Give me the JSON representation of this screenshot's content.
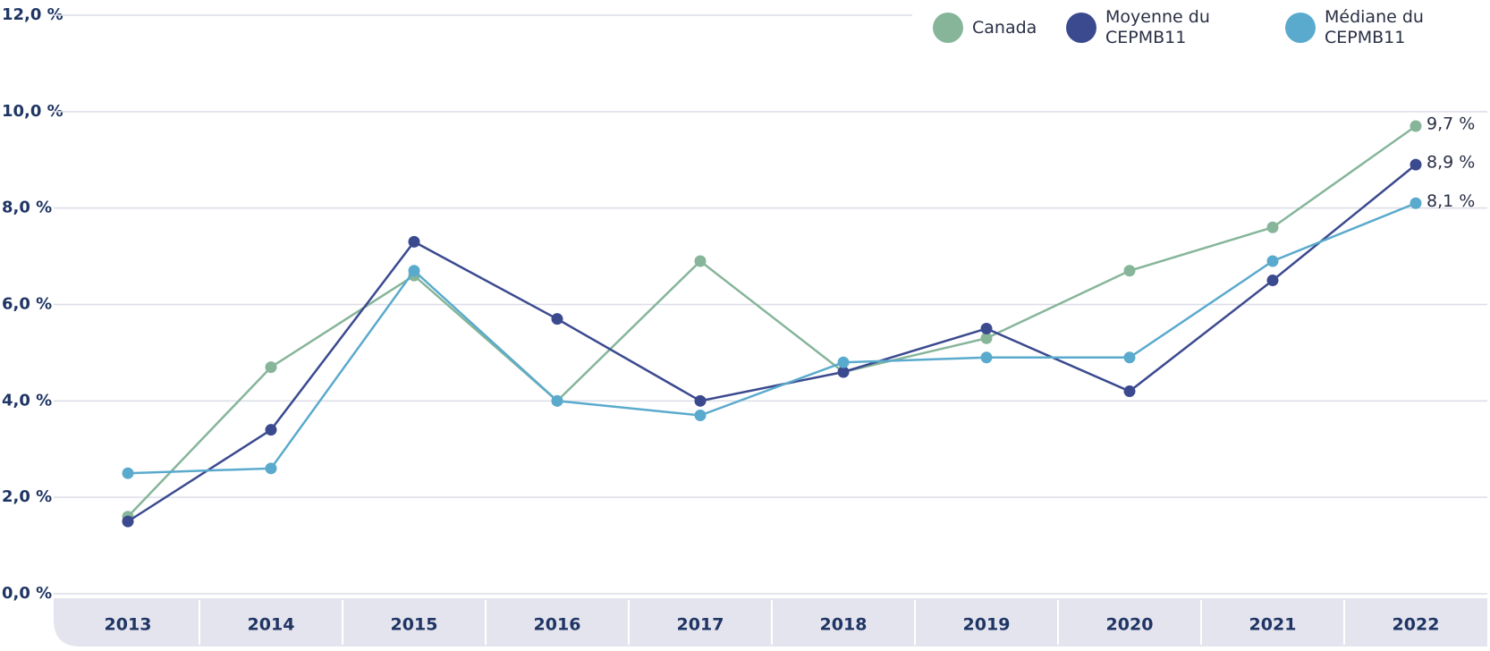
{
  "chart_data": {
    "type": "line",
    "categories": [
      "2013",
      "2014",
      "2015",
      "2016",
      "2017",
      "2018",
      "2019",
      "2020",
      "2021",
      "2022"
    ],
    "series": [
      {
        "name": "Canada",
        "color": "#86b59a",
        "values": [
          1.6,
          4.7,
          6.6,
          4.0,
          6.9,
          4.6,
          5.3,
          6.7,
          7.6,
          9.7
        ],
        "value_labels": [
          null,
          null,
          null,
          null,
          null,
          null,
          null,
          null,
          null,
          "9,7 %"
        ]
      },
      {
        "name": "Moyenne du CEPMB11",
        "color": "#3b4a8f",
        "values": [
          1.5,
          3.4,
          7.3,
          5.7,
          4.0,
          4.6,
          5.5,
          4.2,
          6.5,
          8.9
        ],
        "value_labels": [
          null,
          null,
          null,
          null,
          null,
          null,
          null,
          null,
          null,
          "8,9 %"
        ]
      },
      {
        "name": "Médiane du CEPMB11",
        "color": "#5aaacd",
        "values": [
          2.5,
          2.6,
          6.7,
          4.0,
          3.7,
          4.8,
          4.9,
          4.9,
          6.9,
          8.1
        ],
        "value_labels": [
          null,
          null,
          null,
          null,
          null,
          null,
          null,
          null,
          null,
          "8,1 %"
        ]
      }
    ],
    "ylim": [
      0,
      12
    ],
    "yticks": [
      {
        "value": 0,
        "label": "0,0 %"
      },
      {
        "value": 2,
        "label": "2,0 %"
      },
      {
        "value": 4,
        "label": "4,0 %"
      },
      {
        "value": 6,
        "label": "6,0 %"
      },
      {
        "value": 8,
        "label": "8,0 %"
      },
      {
        "value": 10,
        "label": "10,0 %"
      },
      {
        "value": 12,
        "label": "12,0 %"
      }
    ],
    "grid": true
  }
}
